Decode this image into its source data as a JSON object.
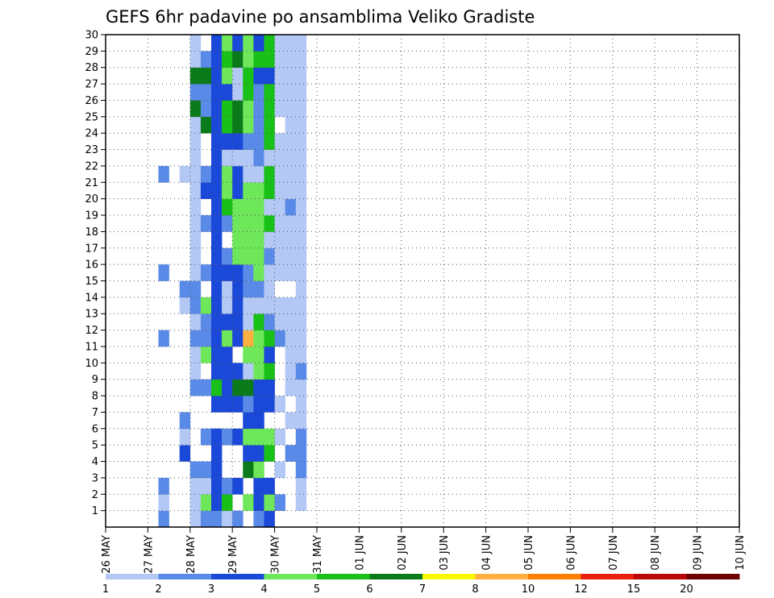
{
  "chart_data": {
    "type": "heatmap",
    "title": "GEFS 6hr padavine po ansamblima Veliko Gradiste",
    "xlabel": "",
    "ylabel": "",
    "x_ticks": [
      "26 MAY",
      "27 MAY",
      "28 MAY",
      "29 MAY",
      "30 MAY",
      "31 MAY",
      "01 JUN",
      "02 JUN",
      "03 JUN",
      "04 JUN",
      "05 JUN",
      "06 JUN",
      "07 JUN",
      "08 JUN",
      "09 JUN",
      "10 JUN"
    ],
    "y_ticks": [
      "1",
      "2",
      "3",
      "4",
      "5",
      "6",
      "7",
      "8",
      "9",
      "10",
      "11",
      "12",
      "13",
      "14",
      "15",
      "16",
      "17",
      "18",
      "19",
      "20",
      "21",
      "22",
      "23",
      "24",
      "25",
      "26",
      "27",
      "28",
      "29",
      "30"
    ],
    "grid": true,
    "steps_per_day": 4,
    "n_steps": 60,
    "n_members": 30,
    "colorbar": {
      "labels": [
        "1",
        "2",
        "3",
        "4",
        "5",
        "6",
        "7",
        "8",
        "10",
        "12",
        "15",
        "20"
      ],
      "colors": [
        "#b3c8f5",
        "#5a8ae8",
        "#1a48d8",
        "#6ee85a",
        "#18c018",
        "#0a7a1a",
        "#f8f800",
        "#ffb040",
        "#ff8000",
        "#e82010",
        "#b80808",
        "#700000"
      ]
    },
    "cells": [
      [
        1,
        5,
        1
      ],
      [
        2,
        5,
        0
      ],
      [
        3,
        5,
        1
      ],
      [
        12,
        5,
        1
      ],
      [
        16,
        5,
        1
      ],
      [
        22,
        5,
        1
      ],
      [
        5,
        7,
        2
      ],
      [
        6,
        7,
        0
      ],
      [
        7,
        7,
        1
      ],
      [
        14,
        7,
        0
      ],
      [
        15,
        7,
        1
      ],
      [
        22,
        7,
        0
      ],
      [
        1,
        8,
        0
      ],
      [
        2,
        8,
        0
      ],
      [
        3,
        8,
        0
      ],
      [
        4,
        8,
        1
      ],
      [
        9,
        8,
        1
      ],
      [
        10,
        8,
        0
      ],
      [
        11,
        8,
        0
      ],
      [
        12,
        8,
        1
      ],
      [
        13,
        8,
        0
      ],
      [
        14,
        8,
        1
      ],
      [
        15,
        8,
        1
      ],
      [
        16,
        8,
        0
      ],
      [
        17,
        8,
        0
      ],
      [
        18,
        8,
        0
      ],
      [
        19,
        8,
        0
      ],
      [
        20,
        8,
        0
      ],
      [
        21,
        8,
        0
      ],
      [
        22,
        8,
        0
      ],
      [
        23,
        8,
        0
      ],
      [
        24,
        8,
        0
      ],
      [
        25,
        8,
        0
      ],
      [
        26,
        8,
        5
      ],
      [
        27,
        8,
        1
      ],
      [
        28,
        8,
        5
      ],
      [
        29,
        8,
        0
      ],
      [
        30,
        8,
        0
      ],
      [
        1,
        9,
        1
      ],
      [
        2,
        9,
        3
      ],
      [
        3,
        9,
        0
      ],
      [
        4,
        9,
        1
      ],
      [
        6,
        9,
        1
      ],
      [
        9,
        9,
        1
      ],
      [
        11,
        9,
        3
      ],
      [
        12,
        9,
        1
      ],
      [
        13,
        9,
        1
      ],
      [
        14,
        9,
        3
      ],
      [
        16,
        9,
        1
      ],
      [
        19,
        9,
        1
      ],
      [
        21,
        9,
        2
      ],
      [
        22,
        9,
        1
      ],
      [
        25,
        9,
        5
      ],
      [
        26,
        9,
        1
      ],
      [
        27,
        9,
        1
      ],
      [
        28,
        9,
        5
      ],
      [
        29,
        9,
        1
      ],
      [
        1,
        10,
        1
      ],
      [
        2,
        10,
        2
      ],
      [
        3,
        10,
        2
      ],
      [
        4,
        10,
        2
      ],
      [
        5,
        10,
        2
      ],
      [
        6,
        10,
        2
      ],
      [
        8,
        10,
        2
      ],
      [
        9,
        10,
        4
      ],
      [
        10,
        10,
        2
      ],
      [
        11,
        10,
        2
      ],
      [
        12,
        10,
        2
      ],
      [
        13,
        10,
        2
      ],
      [
        14,
        10,
        2
      ],
      [
        15,
        10,
        2
      ],
      [
        16,
        10,
        2
      ],
      [
        17,
        10,
        2
      ],
      [
        18,
        10,
        2
      ],
      [
        19,
        10,
        2
      ],
      [
        20,
        10,
        2
      ],
      [
        21,
        10,
        2
      ],
      [
        22,
        10,
        2
      ],
      [
        23,
        10,
        2
      ],
      [
        24,
        10,
        2
      ],
      [
        25,
        10,
        2
      ],
      [
        26,
        10,
        2
      ],
      [
        27,
        10,
        2
      ],
      [
        28,
        10,
        2
      ],
      [
        29,
        10,
        2
      ],
      [
        30,
        10,
        2
      ],
      [
        1,
        11,
        0
      ],
      [
        2,
        11,
        4
      ],
      [
        3,
        11,
        1
      ],
      [
        6,
        11,
        1
      ],
      [
        8,
        11,
        2
      ],
      [
        9,
        11,
        2
      ],
      [
        10,
        11,
        2
      ],
      [
        11,
        11,
        2
      ],
      [
        12,
        11,
        3
      ],
      [
        13,
        11,
        2
      ],
      [
        14,
        11,
        0
      ],
      [
        15,
        11,
        0
      ],
      [
        16,
        11,
        2
      ],
      [
        17,
        11,
        1
      ],
      [
        19,
        11,
        1
      ],
      [
        20,
        11,
        4
      ],
      [
        21,
        11,
        3
      ],
      [
        22,
        11,
        3
      ],
      [
        23,
        11,
        0
      ],
      [
        24,
        11,
        2
      ],
      [
        25,
        11,
        4
      ],
      [
        26,
        11,
        4
      ],
      [
        27,
        11,
        2
      ],
      [
        28,
        11,
        3
      ],
      [
        29,
        11,
        4
      ],
      [
        30,
        11,
        3
      ],
      [
        1,
        12,
        1
      ],
      [
        3,
        12,
        2
      ],
      [
        6,
        12,
        2
      ],
      [
        8,
        12,
        2
      ],
      [
        9,
        12,
        5
      ],
      [
        10,
        12,
        2
      ],
      [
        12,
        12,
        2
      ],
      [
        13,
        12,
        2
      ],
      [
        14,
        12,
        2
      ],
      [
        15,
        12,
        2
      ],
      [
        16,
        12,
        2
      ],
      [
        17,
        12,
        3
      ],
      [
        18,
        12,
        3
      ],
      [
        19,
        12,
        3
      ],
      [
        20,
        12,
        3
      ],
      [
        21,
        12,
        2
      ],
      [
        22,
        12,
        2
      ],
      [
        23,
        12,
        0
      ],
      [
        24,
        12,
        2
      ],
      [
        25,
        12,
        5
      ],
      [
        26,
        12,
        5
      ],
      [
        27,
        12,
        0
      ],
      [
        28,
        12,
        0
      ],
      [
        29,
        12,
        5
      ],
      [
        30,
        12,
        2
      ],
      [
        2,
        13,
        3
      ],
      [
        4,
        13,
        5
      ],
      [
        5,
        13,
        2
      ],
      [
        6,
        13,
        3
      ],
      [
        7,
        13,
        2
      ],
      [
        8,
        13,
        1
      ],
      [
        9,
        13,
        5
      ],
      [
        10,
        13,
        0
      ],
      [
        11,
        13,
        3
      ],
      [
        12,
        13,
        7
      ],
      [
        13,
        13,
        0
      ],
      [
        14,
        13,
        0
      ],
      [
        15,
        13,
        1
      ],
      [
        16,
        13,
        1
      ],
      [
        17,
        13,
        3
      ],
      [
        18,
        13,
        3
      ],
      [
        19,
        13,
        3
      ],
      [
        20,
        13,
        3
      ],
      [
        21,
        13,
        3
      ],
      [
        22,
        13,
        0
      ],
      [
        23,
        13,
        0
      ],
      [
        24,
        13,
        1
      ],
      [
        25,
        13,
        3
      ],
      [
        26,
        13,
        3
      ],
      [
        27,
        13,
        4
      ],
      [
        28,
        13,
        4
      ],
      [
        29,
        13,
        3
      ],
      [
        30,
        13,
        3
      ],
      [
        1,
        14,
        1
      ],
      [
        2,
        14,
        2
      ],
      [
        3,
        14,
        2
      ],
      [
        4,
        14,
        3
      ],
      [
        5,
        14,
        2
      ],
      [
        6,
        14,
        3
      ],
      [
        7,
        14,
        2
      ],
      [
        8,
        14,
        2
      ],
      [
        9,
        14,
        2
      ],
      [
        10,
        14,
        3
      ],
      [
        11,
        14,
        3
      ],
      [
        12,
        14,
        3
      ],
      [
        13,
        14,
        4
      ],
      [
        14,
        14,
        0
      ],
      [
        15,
        14,
        1
      ],
      [
        16,
        14,
        3
      ],
      [
        17,
        14,
        3
      ],
      [
        18,
        14,
        3
      ],
      [
        19,
        14,
        3
      ],
      [
        20,
        14,
        3
      ],
      [
        21,
        14,
        3
      ],
      [
        22,
        14,
        0
      ],
      [
        23,
        14,
        1
      ],
      [
        24,
        14,
        1
      ],
      [
        25,
        14,
        1
      ],
      [
        26,
        14,
        1
      ],
      [
        27,
        14,
        1
      ],
      [
        28,
        14,
        2
      ],
      [
        29,
        14,
        4
      ],
      [
        30,
        14,
        2
      ],
      [
        1,
        15,
        2
      ],
      [
        2,
        15,
        3
      ],
      [
        3,
        15,
        2
      ],
      [
        5,
        15,
        4
      ],
      [
        6,
        15,
        3
      ],
      [
        8,
        15,
        2
      ],
      [
        9,
        15,
        2
      ],
      [
        10,
        15,
        4
      ],
      [
        11,
        15,
        2
      ],
      [
        12,
        15,
        4
      ],
      [
        13,
        15,
        1
      ],
      [
        14,
        15,
        0
      ],
      [
        15,
        15,
        0
      ],
      [
        16,
        15,
        0
      ],
      [
        17,
        15,
        1
      ],
      [
        18,
        15,
        0
      ],
      [
        19,
        15,
        4
      ],
      [
        20,
        15,
        0
      ],
      [
        21,
        15,
        4
      ],
      [
        22,
        15,
        4
      ],
      [
        23,
        15,
        0
      ],
      [
        24,
        15,
        4
      ],
      [
        25,
        15,
        4
      ],
      [
        26,
        15,
        4
      ],
      [
        27,
        15,
        4
      ],
      [
        28,
        15,
        2
      ],
      [
        29,
        15,
        4
      ],
      [
        30,
        15,
        4
      ],
      [
        2,
        16,
        1
      ],
      [
        4,
        16,
        0
      ],
      [
        6,
        16,
        0
      ],
      [
        8,
        16,
        0
      ],
      [
        12,
        16,
        1
      ],
      [
        13,
        16,
        0
      ],
      [
        14,
        16,
        0
      ],
      [
        16,
        16,
        0
      ],
      [
        17,
        16,
        0
      ],
      [
        18,
        16,
        0
      ],
      [
        19,
        16,
        0
      ],
      [
        20,
        16,
        0
      ],
      [
        21,
        16,
        0
      ],
      [
        22,
        16,
        0
      ],
      [
        23,
        16,
        0
      ],
      [
        24,
        16,
        0
      ],
      [
        26,
        16,
        0
      ],
      [
        27,
        16,
        0
      ],
      [
        28,
        16,
        0
      ],
      [
        29,
        16,
        0
      ],
      [
        30,
        16,
        0
      ],
      [
        5,
        17,
        1
      ],
      [
        7,
        17,
        0
      ],
      [
        9,
        17,
        0
      ],
      [
        10,
        17,
        0
      ],
      [
        11,
        17,
        0
      ],
      [
        12,
        17,
        0
      ],
      [
        13,
        17,
        0
      ],
      [
        14,
        17,
        0
      ],
      [
        16,
        17,
        0
      ],
      [
        17,
        17,
        0
      ],
      [
        18,
        17,
        0
      ],
      [
        19,
        17,
        0
      ],
      [
        20,
        17,
        1
      ],
      [
        21,
        17,
        0
      ],
      [
        22,
        17,
        0
      ],
      [
        23,
        17,
        0
      ],
      [
        24,
        17,
        0
      ],
      [
        25,
        17,
        0
      ],
      [
        26,
        17,
        0
      ],
      [
        27,
        17,
        0
      ],
      [
        28,
        17,
        0
      ],
      [
        29,
        17,
        0
      ],
      [
        30,
        17,
        0
      ],
      [
        2,
        18,
        0
      ],
      [
        3,
        18,
        0
      ],
      [
        4,
        18,
        1
      ],
      [
        5,
        18,
        1
      ],
      [
        6,
        18,
        1
      ],
      [
        7,
        18,
        0
      ],
      [
        8,
        18,
        0
      ],
      [
        9,
        18,
        0
      ],
      [
        10,
        18,
        1
      ],
      [
        11,
        18,
        0
      ],
      [
        12,
        18,
        0
      ],
      [
        13,
        18,
        0
      ],
      [
        14,
        18,
        0
      ],
      [
        15,
        18,
        0
      ],
      [
        16,
        18,
        0
      ],
      [
        17,
        18,
        0
      ],
      [
        18,
        18,
        0
      ],
      [
        19,
        18,
        0
      ],
      [
        20,
        18,
        0
      ],
      [
        21,
        18,
        0
      ],
      [
        22,
        18,
        0
      ],
      [
        23,
        18,
        0
      ],
      [
        24,
        18,
        0
      ],
      [
        25,
        18,
        0
      ],
      [
        26,
        18,
        0
      ],
      [
        27,
        18,
        0
      ],
      [
        28,
        18,
        0
      ],
      [
        29,
        18,
        0
      ],
      [
        30,
        18,
        0
      ]
    ]
  }
}
